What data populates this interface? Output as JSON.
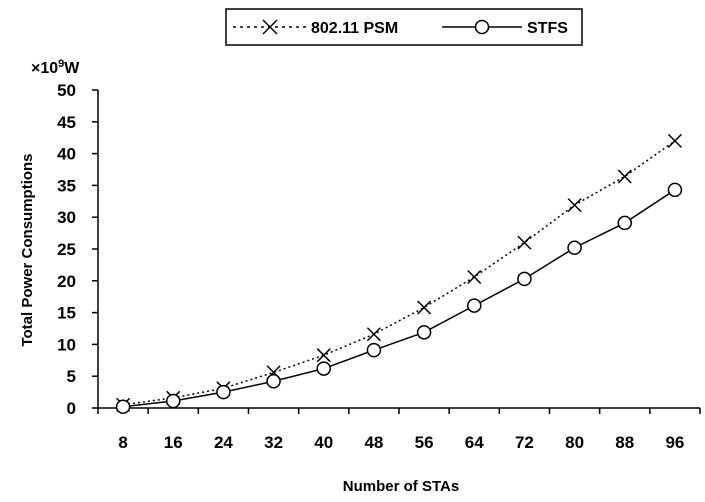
{
  "chart_data": {
    "type": "line",
    "title": "",
    "xlabel": "Number of STAs",
    "ylabel": "Total Power Consumptions",
    "y_unit_prefix": "×10",
    "y_unit_exponent": "9",
    "y_unit_suffix": "W",
    "categories": [
      "8",
      "16",
      "24",
      "32",
      "40",
      "48",
      "56",
      "64",
      "72",
      "80",
      "88",
      "96"
    ],
    "ylim": [
      0,
      50
    ],
    "yticks": [
      "0",
      "5",
      "10",
      "15",
      "20",
      "25",
      "30",
      "35",
      "40",
      "45",
      "50"
    ],
    "grid": false,
    "legend_position": "top-center",
    "series": [
      {
        "name": "802.11 PSM",
        "line_style": "dotted",
        "marker": "x",
        "color": "#000000",
        "values": [
          0.5,
          1.6,
          3.1,
          5.6,
          8.3,
          11.6,
          15.8,
          20.6,
          26.0,
          31.9,
          36.4,
          42.0
        ]
      },
      {
        "name": "STFS",
        "line_style": "solid",
        "marker": "circle",
        "color": "#000000",
        "values": [
          0.2,
          1.1,
          2.5,
          4.2,
          6.2,
          9.1,
          11.9,
          16.1,
          20.3,
          25.2,
          29.1,
          34.3
        ]
      }
    ]
  }
}
